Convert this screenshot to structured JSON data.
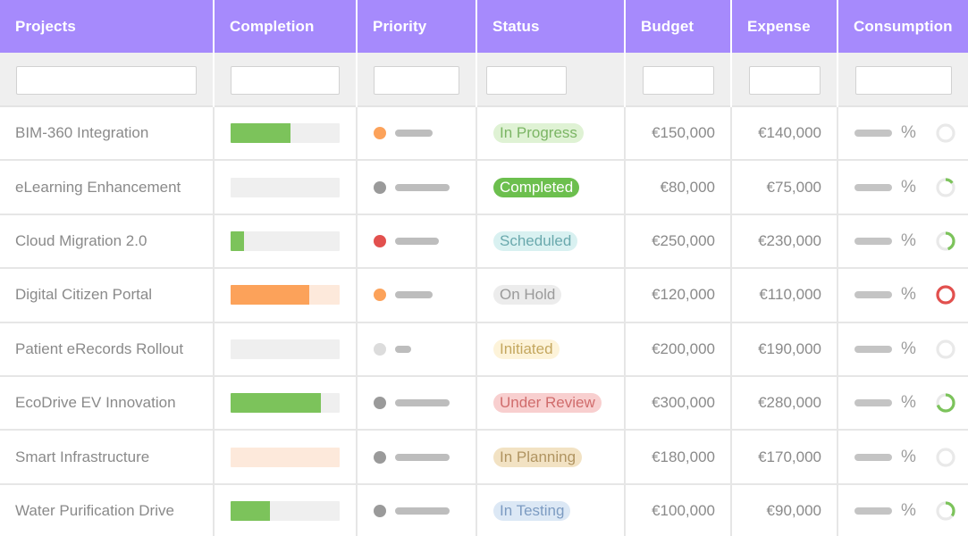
{
  "columns": [
    "Projects",
    "Completion",
    "Priority",
    "Status",
    "Budget",
    "Expense",
    "Consumption"
  ],
  "filters": {
    "projects": "",
    "completion": "",
    "priority": "",
    "status": "",
    "budget": "",
    "expense": "",
    "consumption": ""
  },
  "colors": {
    "header_bg": "#a68afc",
    "green": "#7cc35b",
    "orange": "#fca25a",
    "red": "#e2504e",
    "gray": "#9a9a9a",
    "light_gray": "#dcdcdc"
  },
  "rows": [
    {
      "project": "BIM-360 Integration",
      "completion": 0.55,
      "bar_color": "#7cc35b",
      "track_color": "#efefef",
      "priority_color": "#fca25a",
      "priority_level": 0.58,
      "status": "In Progress",
      "status_bg": "#dff2d4",
      "status_fg": "#7bb564",
      "budget": "€150,000",
      "expense": "€140,000",
      "pct": "%",
      "consumption": 0.0,
      "ring_color": "#e9e9e9",
      "ring_fg": "#7cc35b"
    },
    {
      "project": "eLearning Enhancement",
      "completion": 0.0,
      "bar_color": "#7cc35b",
      "track_color": "#efefef",
      "priority_color": "#9a9a9a",
      "priority_level": 0.85,
      "status": "Completed",
      "status_bg": "#6cbf4e",
      "status_fg": "#ffffff",
      "budget": "€80,000",
      "expense": "€75,000",
      "pct": "%",
      "consumption": 0.15,
      "ring_color": "#e9e9e9",
      "ring_fg": "#7cc35b"
    },
    {
      "project": "Cloud Migration 2.0",
      "completion": 0.12,
      "bar_color": "#7cc35b",
      "track_color": "#efefef",
      "priority_color": "#e2504e",
      "priority_level": 0.68,
      "status": "Scheduled",
      "status_bg": "#d9f1f1",
      "status_fg": "#6aa9ad",
      "budget": "€250,000",
      "expense": "€230,000",
      "pct": "%",
      "consumption": 0.45,
      "ring_color": "#e9e9e9",
      "ring_fg": "#7cc35b"
    },
    {
      "project": "Digital Citizen Portal",
      "completion": 0.72,
      "bar_color": "#fca25a",
      "track_color": "#fde9db",
      "priority_color": "#fca25a",
      "priority_level": 0.58,
      "status": "On Hold",
      "status_bg": "#ececec",
      "status_fg": "#9a9a9a",
      "budget": "€120,000",
      "expense": "€110,000",
      "pct": "%",
      "consumption": 1.0,
      "ring_color": "#e9e9e9",
      "ring_fg": "#e2504e"
    },
    {
      "project": "Patient eRecords Rollout",
      "completion": 0.0,
      "bar_color": "#7cc35b",
      "track_color": "#efefef",
      "priority_color": "#dcdcdc",
      "priority_level": 0.25,
      "status": "Initiated",
      "status_bg": "#fdf3d9",
      "status_fg": "#c4a75f",
      "budget": "€200,000",
      "expense": "€190,000",
      "pct": "%",
      "consumption": 0.0,
      "ring_color": "#e9e9e9",
      "ring_fg": "#7cc35b"
    },
    {
      "project": "EcoDrive EV Innovation",
      "completion": 0.83,
      "bar_color": "#7cc35b",
      "track_color": "#efefef",
      "priority_color": "#9a9a9a",
      "priority_level": 0.85,
      "status": "Under Review",
      "status_bg": "#f8cfcf",
      "status_fg": "#d06c6c",
      "budget": "€300,000",
      "expense": "€280,000",
      "pct": "%",
      "consumption": 0.7,
      "ring_color": "#e9e9e9",
      "ring_fg": "#7cc35b"
    },
    {
      "project": "Smart Infrastructure",
      "completion": 0.0,
      "bar_color": "#fca25a",
      "track_color": "#fde9db",
      "priority_color": "#9a9a9a",
      "priority_level": 0.85,
      "status": "In Planning",
      "status_bg": "#f2e2c3",
      "status_fg": "#b09461",
      "budget": "€180,000",
      "expense": "€170,000",
      "pct": "%",
      "consumption": 0.0,
      "ring_color": "#e9e9e9",
      "ring_fg": "#7cc35b"
    },
    {
      "project": "Water Purification Drive",
      "completion": 0.36,
      "bar_color": "#7cc35b",
      "track_color": "#efefef",
      "priority_color": "#9a9a9a",
      "priority_level": 0.85,
      "status": "In Testing",
      "status_bg": "#dce8f5",
      "status_fg": "#7d9cc2",
      "budget": "€100,000",
      "expense": "€90,000",
      "pct": "%",
      "consumption": 0.35,
      "ring_color": "#e9e9e9",
      "ring_fg": "#7cc35b"
    }
  ]
}
